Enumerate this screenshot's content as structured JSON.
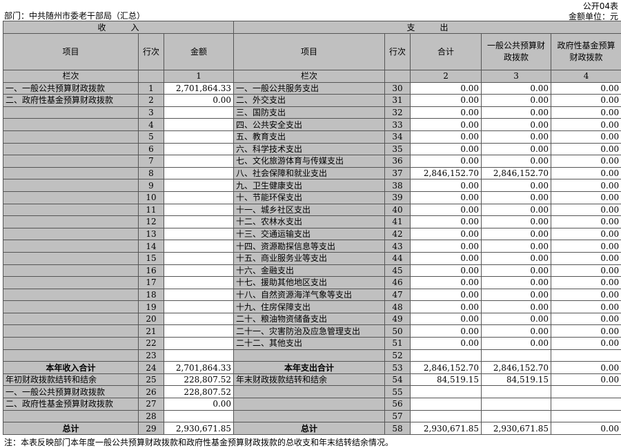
{
  "header": {
    "form_id": "公开04表",
    "unit": "金额单位：元",
    "department": "部门：中共随州市委老干部局（汇总）"
  },
  "columns": {
    "income": "收　　　入",
    "expense": "支　　　出",
    "item": "项目",
    "line": "行次",
    "amount": "金额",
    "total": "合计",
    "general": "一般公共预算财政拨款",
    "fund": "政府性基金预算财政拨款",
    "lanci": "栏次",
    "c1": "1",
    "c2": "2",
    "c3": "3",
    "c4": "4"
  },
  "rows": [
    {
      "in_item": "一、一般公共预算财政拨款",
      "in_no": "1",
      "in_amt": "2,701,864.33",
      "ex_item": "一、一般公共服务支出",
      "ex_no": "30",
      "t": "0.00",
      "g": "0.00",
      "f": "0.00"
    },
    {
      "in_item": "二、政府性基金预算财政拨款",
      "in_no": "2",
      "in_amt": "0.00",
      "ex_item": "二、外交支出",
      "ex_no": "31",
      "t": "0.00",
      "g": "0.00",
      "f": "0.00"
    },
    {
      "in_item": "",
      "in_no": "3",
      "in_amt": "",
      "ex_item": "三、国防支出",
      "ex_no": "32",
      "t": "0.00",
      "g": "0.00",
      "f": "0.00"
    },
    {
      "in_item": "",
      "in_no": "4",
      "in_amt": "",
      "ex_item": "四、公共安全支出",
      "ex_no": "33",
      "t": "0.00",
      "g": "0.00",
      "f": "0.00"
    },
    {
      "in_item": "",
      "in_no": "5",
      "in_amt": "",
      "ex_item": "五、教育支出",
      "ex_no": "34",
      "t": "0.00",
      "g": "0.00",
      "f": "0.00"
    },
    {
      "in_item": "",
      "in_no": "6",
      "in_amt": "",
      "ex_item": "六、科学技术支出",
      "ex_no": "35",
      "t": "0.00",
      "g": "0.00",
      "f": "0.00"
    },
    {
      "in_item": "",
      "in_no": "7",
      "in_amt": "",
      "ex_item": "七、文化旅游体育与传媒支出",
      "ex_no": "36",
      "t": "0.00",
      "g": "0.00",
      "f": "0.00"
    },
    {
      "in_item": "",
      "in_no": "8",
      "in_amt": "",
      "ex_item": "八、社会保障和就业支出",
      "ex_no": "37",
      "t": "2,846,152.70",
      "g": "2,846,152.70",
      "f": "0.00"
    },
    {
      "in_item": "",
      "in_no": "9",
      "in_amt": "",
      "ex_item": "九、卫生健康支出",
      "ex_no": "38",
      "t": "0.00",
      "g": "0.00",
      "f": "0.00"
    },
    {
      "in_item": "",
      "in_no": "10",
      "in_amt": "",
      "ex_item": "十、节能环保支出",
      "ex_no": "39",
      "t": "0.00",
      "g": "0.00",
      "f": "0.00"
    },
    {
      "in_item": "",
      "in_no": "11",
      "in_amt": "",
      "ex_item": "十一、城乡社区支出",
      "ex_no": "40",
      "t": "0.00",
      "g": "0.00",
      "f": "0.00"
    },
    {
      "in_item": "",
      "in_no": "12",
      "in_amt": "",
      "ex_item": "十二、农林水支出",
      "ex_no": "41",
      "t": "0.00",
      "g": "0.00",
      "f": "0.00"
    },
    {
      "in_item": "",
      "in_no": "13",
      "in_amt": "",
      "ex_item": "十三、交通运输支出",
      "ex_no": "42",
      "t": "0.00",
      "g": "0.00",
      "f": "0.00"
    },
    {
      "in_item": "",
      "in_no": "14",
      "in_amt": "",
      "ex_item": "十四、资源勘探信息等支出",
      "ex_no": "43",
      "t": "0.00",
      "g": "0.00",
      "f": "0.00"
    },
    {
      "in_item": "",
      "in_no": "15",
      "in_amt": "",
      "ex_item": "十五、商业服务业等支出",
      "ex_no": "44",
      "t": "0.00",
      "g": "0.00",
      "f": "0.00"
    },
    {
      "in_item": "",
      "in_no": "16",
      "in_amt": "",
      "ex_item": "十六、金融支出",
      "ex_no": "45",
      "t": "0.00",
      "g": "0.00",
      "f": "0.00"
    },
    {
      "in_item": "",
      "in_no": "17",
      "in_amt": "",
      "ex_item": "十七、援助其他地区支出",
      "ex_no": "46",
      "t": "0.00",
      "g": "0.00",
      "f": "0.00"
    },
    {
      "in_item": "",
      "in_no": "18",
      "in_amt": "",
      "ex_item": "十八、自然资源海洋气象等支出",
      "ex_no": "47",
      "t": "0.00",
      "g": "0.00",
      "f": "0.00"
    },
    {
      "in_item": "",
      "in_no": "19",
      "in_amt": "",
      "ex_item": "十九、住房保障支出",
      "ex_no": "48",
      "t": "0.00",
      "g": "0.00",
      "f": "0.00"
    },
    {
      "in_item": "",
      "in_no": "20",
      "in_amt": "",
      "ex_item": "二十、粮油物资储备支出",
      "ex_no": "49",
      "t": "0.00",
      "g": "0.00",
      "f": "0.00"
    },
    {
      "in_item": "",
      "in_no": "21",
      "in_amt": "",
      "ex_item": "二十一、灾害防治及应急管理支出",
      "ex_no": "50",
      "t": "0.00",
      "g": "0.00",
      "f": "0.00"
    },
    {
      "in_item": "",
      "in_no": "22",
      "in_amt": "",
      "ex_item": "二十二、其他支出",
      "ex_no": "51",
      "t": "0.00",
      "g": "0.00",
      "f": "0.00"
    },
    {
      "in_item": "",
      "in_no": "23",
      "in_amt": "",
      "ex_item": "",
      "ex_no": "52",
      "t": "",
      "g": "",
      "f": ""
    },
    {
      "in_item": "本年收入合计",
      "in_no": "24",
      "in_amt": "2,701,864.33",
      "ex_item": "本年支出合计",
      "ex_no": "53",
      "t": "2,846,152.70",
      "g": "2,846,152.70",
      "f": "0.00",
      "bold": true
    },
    {
      "in_item": "年初财政拨款结转和结余",
      "in_no": "25",
      "in_amt": "228,807.52",
      "ex_item": "年末财政拨款结转和结余",
      "ex_no": "54",
      "t": "84,519.15",
      "g": "84,519.15",
      "f": "0.00"
    },
    {
      "in_item": "一、一般公共预算财政拨款",
      "in_no": "26",
      "in_amt": "228,807.52",
      "ex_item": "",
      "ex_no": "55",
      "t": "",
      "g": "",
      "f": ""
    },
    {
      "in_item": "二、政府性基金预算财政拨款",
      "in_no": "27",
      "in_amt": "0.00",
      "ex_item": "",
      "ex_no": "56",
      "t": "",
      "g": "",
      "f": ""
    },
    {
      "in_item": "",
      "in_no": "28",
      "in_amt": "",
      "ex_item": "",
      "ex_no": "57",
      "t": "",
      "g": "",
      "f": ""
    },
    {
      "in_item": "总计",
      "in_no": "29",
      "in_amt": "2,930,671.85",
      "ex_item": "总计",
      "ex_no": "58",
      "t": "2,930,671.85",
      "g": "2,930,671.85",
      "f": "0.00",
      "bold": true
    }
  ],
  "note": "注：本表反映部门本年度一般公共预算财政拨款和政府性基金预算财政拨款的总收支和年末结转结余情况。"
}
